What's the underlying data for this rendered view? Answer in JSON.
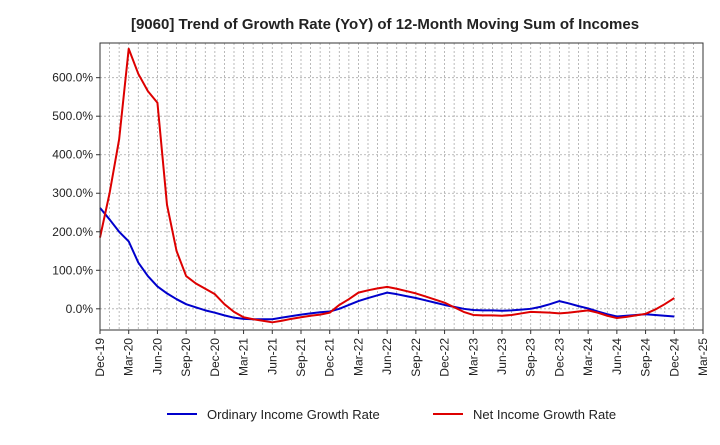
{
  "chart_data": {
    "type": "line",
    "title": "[9060]  Trend of Growth Rate (YoY) of 12-Month Moving Sum of Incomes",
    "xlabel": "",
    "ylabel": "",
    "x_ticks": [
      "Dec-19",
      "Mar-20",
      "Jun-20",
      "Sep-20",
      "Dec-20",
      "Mar-21",
      "Jun-21",
      "Sep-21",
      "Dec-21",
      "Mar-22",
      "Jun-22",
      "Sep-22",
      "Dec-22",
      "Mar-23",
      "Jun-23",
      "Sep-23",
      "Dec-23",
      "Mar-24",
      "Jun-24",
      "Sep-24",
      "Dec-24",
      "Mar-25"
    ],
    "y_ticks": [
      0,
      100,
      200,
      300,
      400,
      500,
      600
    ],
    "y_tick_labels": [
      "0.0%",
      "100.0%",
      "200.0%",
      "300.0%",
      "400.0%",
      "500.0%",
      "600.0%"
    ],
    "ylim": [
      -55,
      690
    ],
    "grid": true,
    "legend_position": "bottom",
    "months": [
      "Dec-19",
      "Jan-20",
      "Feb-20",
      "Mar-20",
      "Apr-20",
      "May-20",
      "Jun-20",
      "Jul-20",
      "Aug-20",
      "Sep-20",
      "Oct-20",
      "Nov-20",
      "Dec-20",
      "Jan-21",
      "Feb-21",
      "Mar-21",
      "Apr-21",
      "May-21",
      "Jun-21",
      "Jul-21",
      "Aug-21",
      "Sep-21",
      "Oct-21",
      "Nov-21",
      "Dec-21",
      "Jan-22",
      "Feb-22",
      "Mar-22",
      "Apr-22",
      "May-22",
      "Jun-22",
      "Jul-22",
      "Aug-22",
      "Sep-22",
      "Oct-22",
      "Nov-22",
      "Dec-22",
      "Jan-23",
      "Feb-23",
      "Mar-23",
      "Apr-23",
      "May-23",
      "Jun-23",
      "Jul-23",
      "Aug-23",
      "Sep-23",
      "Oct-23",
      "Nov-23",
      "Dec-23",
      "Jan-24",
      "Feb-24",
      "Mar-24",
      "Apr-24",
      "May-24",
      "Jun-24",
      "Jul-24",
      "Aug-24",
      "Sep-24",
      "Oct-24",
      "Nov-24",
      "Dec-24"
    ],
    "series": [
      {
        "name": "Ordinary Income Growth Rate",
        "color": "#0000cc",
        "values": [
          262,
          232,
          200,
          175,
          120,
          85,
          58,
          40,
          25,
          12,
          4,
          -4,
          -10,
          -17,
          -23,
          -26,
          -27,
          -27,
          -27,
          -23,
          -19,
          -15,
          -12,
          -9,
          -7,
          0,
          10,
          20,
          28,
          35,
          42,
          38,
          33,
          28,
          22,
          16,
          10,
          5,
          0,
          -3,
          -4,
          -4,
          -5,
          -4,
          -2,
          0,
          5,
          12,
          20,
          14,
          7,
          1,
          -7,
          -14,
          -20,
          -18,
          -16,
          -14,
          -16,
          -18,
          -20
        ]
      },
      {
        "name": "Net Income Growth Rate",
        "color": "#dd0000",
        "values": [
          185,
          300,
          440,
          675,
          610,
          565,
          535,
          270,
          150,
          85,
          66,
          52,
          38,
          12,
          -8,
          -22,
          -27,
          -31,
          -35,
          -31,
          -26,
          -22,
          -18,
          -15,
          -10,
          10,
          25,
          42,
          48,
          53,
          57,
          52,
          46,
          40,
          32,
          24,
          16,
          4,
          -8,
          -16,
          -17,
          -17,
          -18,
          -16,
          -12,
          -8,
          -9,
          -10,
          -12,
          -10,
          -7,
          -4,
          -10,
          -18,
          -24,
          -21,
          -17,
          -13,
          -2,
          12,
          28
        ]
      }
    ]
  }
}
